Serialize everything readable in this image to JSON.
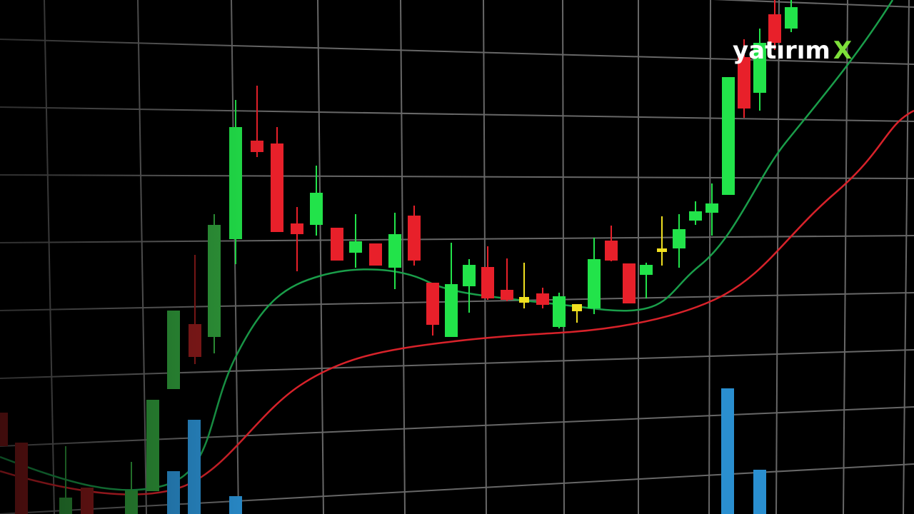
{
  "logo": {
    "text": "yatırım",
    "mark": "X"
  }
}
